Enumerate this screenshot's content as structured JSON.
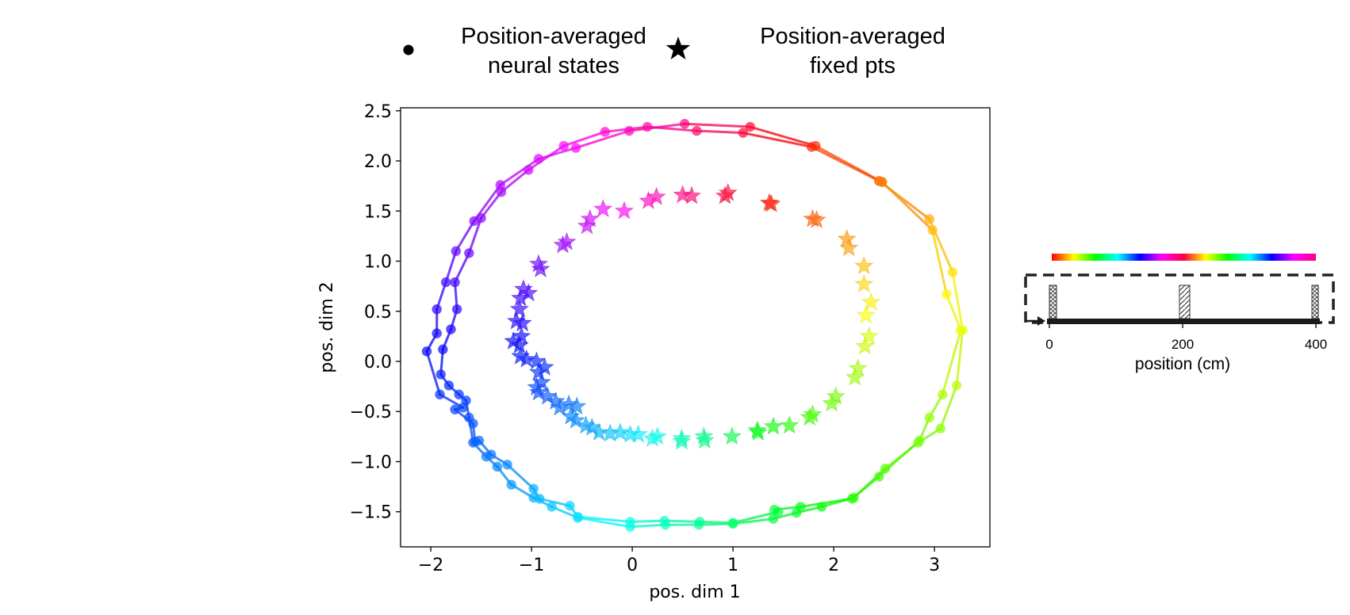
{
  "chart_data": {
    "type": "scatter",
    "xlabel": "pos. dim 1",
    "ylabel": "pos. dim 2",
    "xlim": [
      -2.3,
      3.55
    ],
    "ylim": [
      -1.85,
      2.53
    ],
    "xticks": [
      "−2",
      "−1",
      "0",
      "1",
      "2",
      "3"
    ],
    "xtick_values": [
      -2,
      -1,
      0,
      1,
      2,
      3
    ],
    "yticks": [
      "−1.5",
      "−1.0",
      "−0.5",
      "0.0",
      "0.5",
      "1.0",
      "1.5",
      "2.0",
      "2.5"
    ],
    "ytick_values": [
      -1.5,
      -1.0,
      -0.5,
      0.0,
      0.5,
      1.0,
      1.5,
      2.0,
      2.5
    ],
    "color_map": "position along track 0–400 cm, hue cycles twice (red→yellow→green→cyan→blue→magenta)",
    "legend": [
      {
        "marker": "dot",
        "label_line1": "Position-averaged",
        "label_line2": "neural states"
      },
      {
        "marker": "star",
        "label_line1": "Position-averaged",
        "label_line2": "fixed pts"
      }
    ],
    "series": [
      {
        "name": "Position-averaged neural states (trace A)",
        "marker": "dot",
        "points": [
          [
            2.45,
            1.8
          ],
          [
            2.95,
            1.42
          ],
          [
            3.18,
            0.89
          ],
          [
            3.28,
            0.31
          ],
          [
            3.22,
            -0.24
          ],
          [
            3.06,
            -0.67
          ],
          [
            2.84,
            -0.81
          ],
          [
            2.51,
            -1.07
          ],
          [
            2.2,
            -1.36
          ],
          [
            1.88,
            -1.45
          ],
          [
            1.63,
            -1.51
          ],
          [
            1.4,
            -1.57
          ],
          [
            1.0,
            -1.62
          ],
          [
            0.66,
            -1.63
          ],
          [
            0.33,
            -1.63
          ],
          [
            -0.02,
            -1.65
          ],
          [
            -0.54,
            -1.56
          ],
          [
            -0.8,
            -1.45
          ],
          [
            -0.98,
            -1.36
          ],
          [
            -1.2,
            -1.23
          ],
          [
            -1.34,
            -1.05
          ],
          [
            -1.45,
            -0.95
          ],
          [
            -1.58,
            -0.81
          ],
          [
            -1.62,
            -0.56
          ],
          [
            -1.65,
            -0.39
          ],
          [
            -1.72,
            -0.33
          ],
          [
            -1.82,
            -0.24
          ],
          [
            -1.9,
            -0.13
          ],
          [
            -1.88,
            0.12
          ],
          [
            -1.8,
            0.32
          ],
          [
            -1.74,
            0.52
          ],
          [
            -1.76,
            0.79
          ],
          [
            -1.62,
            1.08
          ],
          [
            -1.5,
            1.43
          ],
          [
            -1.3,
            1.69
          ],
          [
            -1.03,
            1.91
          ],
          [
            -0.68,
            2.15
          ],
          [
            -0.27,
            2.29
          ],
          [
            0.15,
            2.34
          ],
          [
            0.64,
            2.3
          ],
          [
            1.1,
            2.28
          ],
          [
            1.78,
            2.14
          ],
          [
            2.45,
            1.8
          ]
        ]
      },
      {
        "name": "Position-averaged neural states (trace B)",
        "marker": "dot",
        "points": [
          [
            2.48,
            1.79
          ],
          [
            2.98,
            1.31
          ],
          [
            3.12,
            0.67
          ],
          [
            3.26,
            0.31
          ],
          [
            3.08,
            -0.33
          ],
          [
            2.95,
            -0.56
          ],
          [
            2.85,
            -0.79
          ],
          [
            2.45,
            -1.15
          ],
          [
            2.18,
            -1.37
          ],
          [
            1.67,
            -1.45
          ],
          [
            1.41,
            -1.48
          ],
          [
            1.45,
            -1.5
          ],
          [
            1.0,
            -1.61
          ],
          [
            0.67,
            -1.6
          ],
          [
            0.32,
            -1.59
          ],
          [
            -0.02,
            -1.6
          ],
          [
            -0.54,
            -1.55
          ],
          [
            -0.62,
            -1.44
          ],
          [
            -0.92,
            -1.37
          ],
          [
            -0.98,
            -1.27
          ],
          [
            -1.24,
            -1.03
          ],
          [
            -1.4,
            -0.93
          ],
          [
            -1.52,
            -0.79
          ],
          [
            -1.56,
            -0.8
          ],
          [
            -1.58,
            -0.62
          ],
          [
            -1.76,
            -0.48
          ],
          [
            -1.68,
            -0.46
          ],
          [
            -1.91,
            -0.33
          ],
          [
            -2.04,
            0.1
          ],
          [
            -1.94,
            0.28
          ],
          [
            -1.94,
            0.52
          ],
          [
            -1.85,
            0.79
          ],
          [
            -1.75,
            1.1
          ],
          [
            -1.57,
            1.4
          ],
          [
            -1.31,
            1.76
          ],
          [
            -0.93,
            2.02
          ],
          [
            -0.56,
            2.13
          ],
          [
            -0.03,
            2.3
          ],
          [
            0.52,
            2.37
          ],
          [
            1.17,
            2.34
          ],
          [
            1.82,
            2.15
          ],
          [
            2.48,
            1.79
          ]
        ]
      },
      {
        "name": "Position-averaged fixed pts",
        "marker": "star",
        "points": [
          [
            2.13,
            1.22
          ],
          [
            2.15,
            1.13
          ],
          [
            2.3,
            0.95
          ],
          [
            2.3,
            0.77
          ],
          [
            2.37,
            0.59
          ],
          [
            2.32,
            0.46
          ],
          [
            2.35,
            0.25
          ],
          [
            2.31,
            0.15
          ],
          [
            2.24,
            -0.07
          ],
          [
            2.21,
            -0.16
          ],
          [
            2.02,
            -0.35
          ],
          [
            1.98,
            -0.42
          ],
          [
            1.79,
            -0.53
          ],
          [
            1.76,
            -0.56
          ],
          [
            1.56,
            -0.64
          ],
          [
            1.4,
            -0.65
          ],
          [
            1.24,
            -0.69
          ],
          [
            1.25,
            -0.71
          ],
          [
            0.99,
            -0.75
          ],
          [
            0.71,
            -0.75
          ],
          [
            0.72,
            -0.79
          ],
          [
            0.49,
            -0.77
          ],
          [
            0.49,
            -0.8
          ],
          [
            0.25,
            -0.75
          ],
          [
            0.2,
            -0.77
          ],
          [
            0.06,
            -0.73
          ],
          [
            -0.02,
            -0.73
          ],
          [
            -0.12,
            -0.71
          ],
          [
            -0.22,
            -0.72
          ],
          [
            -0.33,
            -0.71
          ],
          [
            -0.4,
            -0.66
          ],
          [
            -0.46,
            -0.64
          ],
          [
            -0.56,
            -0.59
          ],
          [
            -0.61,
            -0.55
          ],
          [
            -0.55,
            -0.45
          ],
          [
            -0.63,
            -0.43
          ],
          [
            -0.72,
            -0.46
          ],
          [
            -0.76,
            -0.4
          ],
          [
            -0.84,
            -0.35
          ],
          [
            -0.93,
            -0.31
          ],
          [
            -0.95,
            -0.26
          ],
          [
            -0.9,
            -0.21
          ],
          [
            -0.93,
            -0.11
          ],
          [
            -0.87,
            -0.06
          ],
          [
            -0.95,
            0.0
          ],
          [
            -1.05,
            0.02
          ],
          [
            -1.11,
            0.05
          ],
          [
            -1.12,
            0.16
          ],
          [
            -1.18,
            0.2
          ],
          [
            -1.1,
            0.25
          ],
          [
            -1.09,
            0.38
          ],
          [
            -1.15,
            0.4
          ],
          [
            -1.12,
            0.52
          ],
          [
            -1.11,
            0.63
          ],
          [
            -1.03,
            0.68
          ],
          [
            -1.08,
            0.72
          ],
          [
            -0.91,
            0.92
          ],
          [
            -0.93,
            0.97
          ],
          [
            -0.69,
            1.16
          ],
          [
            -0.65,
            1.19
          ],
          [
            -0.45,
            1.35
          ],
          [
            -0.42,
            1.42
          ],
          [
            -0.29,
            1.52
          ],
          [
            -0.08,
            1.5
          ],
          [
            0.16,
            1.6
          ],
          [
            0.24,
            1.64
          ],
          [
            0.5,
            1.66
          ],
          [
            0.59,
            1.65
          ],
          [
            0.92,
            1.65
          ],
          [
            0.95,
            1.68
          ],
          [
            1.36,
            1.58
          ],
          [
            1.38,
            1.57
          ],
          [
            1.79,
            1.42
          ],
          [
            1.83,
            1.41
          ]
        ]
      }
    ],
    "inset": {
      "xlabel": "position (cm)",
      "ticks": [
        "0",
        "200",
        "400"
      ],
      "tick_values": [
        0,
        200,
        400
      ]
    }
  }
}
